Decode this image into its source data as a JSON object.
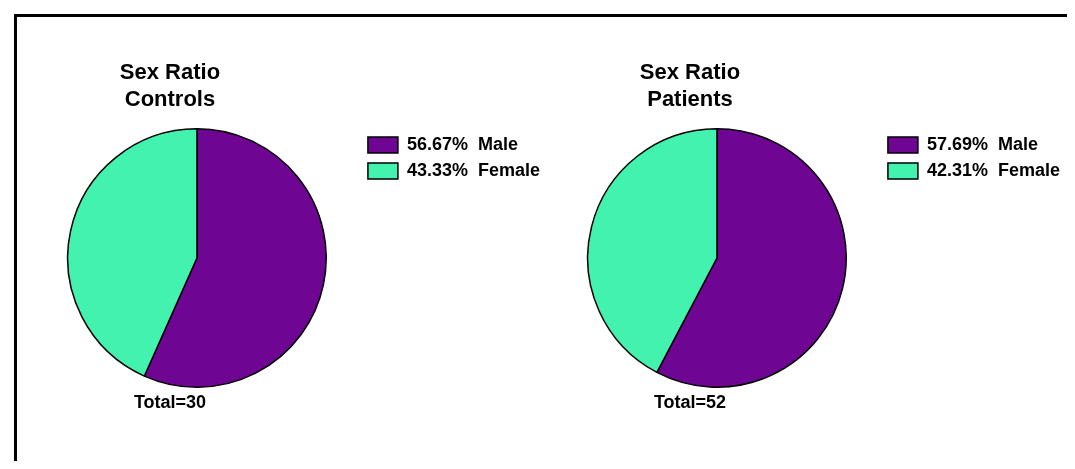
{
  "chart_data": [
    {
      "type": "pie",
      "title": "Sex Ratio\nControls",
      "categories": [
        "Male",
        "Female"
      ],
      "values": [
        56.67,
        43.33
      ],
      "value_labels": [
        "56.67%",
        "43.33%"
      ],
      "colors": [
        "#6f0593",
        "#44f2b0"
      ],
      "legend": "right",
      "annotations": [
        "Total=30"
      ]
    },
    {
      "type": "pie",
      "title": "Sex Ratio\nPatients",
      "categories": [
        "Male",
        "Female"
      ],
      "values": [
        57.69,
        42.31
      ],
      "value_labels": [
        "57.69%",
        "42.31%"
      ],
      "colors": [
        "#6f0593",
        "#44f2b0"
      ],
      "legend": "right",
      "annotations": [
        "Total=52"
      ]
    }
  ]
}
